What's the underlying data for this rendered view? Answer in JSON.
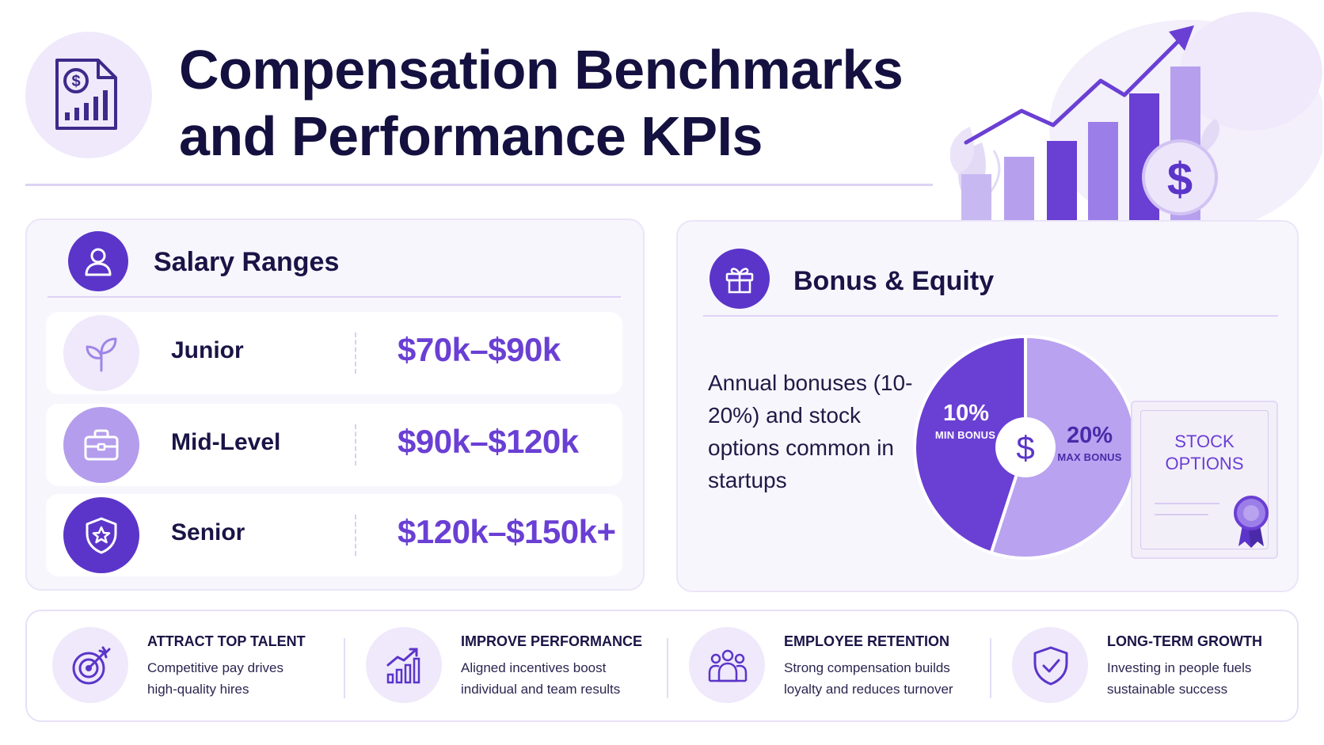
{
  "header": {
    "title_line1": "Compensation Benchmarks",
    "title_line2": "and Performance KPIs",
    "icon": "salary-report-icon",
    "hero_icon": "growth-chart-dollar-icon"
  },
  "salary": {
    "title": "Salary Ranges",
    "icon": "user-icon",
    "tiers": [
      {
        "label": "Junior",
        "range": "$70k–$90k",
        "icon": "sprout-icon"
      },
      {
        "label": "Mid-Level",
        "range": "$90k–$120k",
        "icon": "briefcase-icon"
      },
      {
        "label": "Senior",
        "range": "$120k–$150k+",
        "icon": "shield-star-icon"
      }
    ]
  },
  "bonus": {
    "title": "Bonus & Equity",
    "icon": "gift-icon",
    "description": "Annual bonuses (10-20%) and stock options common in startups",
    "pie": {
      "slices": [
        {
          "value": "10%",
          "caption": "MIN BONUS",
          "fraction": 0.45,
          "color": "#6a3fd4"
        },
        {
          "value": "20%",
          "caption": "MAX BONUS",
          "fraction": 0.55,
          "color": "#b9a2f0"
        }
      ],
      "center_icon": "dollar-icon"
    },
    "certificate": {
      "line1": "STOCK",
      "line2": "OPTIONS",
      "icon": "ribbon-seal-icon"
    }
  },
  "kpis": [
    {
      "title": "ATTRACT TOP TALENT",
      "desc_line1": "Competitive pay drives",
      "desc_line2": "high-quality hires",
      "icon": "target-icon"
    },
    {
      "title": "IMPROVE PERFORMANCE",
      "desc_line1": "Aligned incentives boost",
      "desc_line2": "individual and team results",
      "icon": "bar-chart-up-icon"
    },
    {
      "title": "EMPLOYEE RETENTION",
      "desc_line1": "Strong compensation builds",
      "desc_line2": "loyalty and reduces turnover",
      "icon": "people-group-icon"
    },
    {
      "title": "LONG-TERM GROWTH",
      "desc_line1": "Investing in people fuels",
      "desc_line2": "sustainable success",
      "icon": "shield-check-icon"
    }
  ],
  "colors": {
    "primary": "#5b35c9",
    "accent": "#6a3fd4",
    "light": "#b9a2f0",
    "text": "#1a1446"
  }
}
